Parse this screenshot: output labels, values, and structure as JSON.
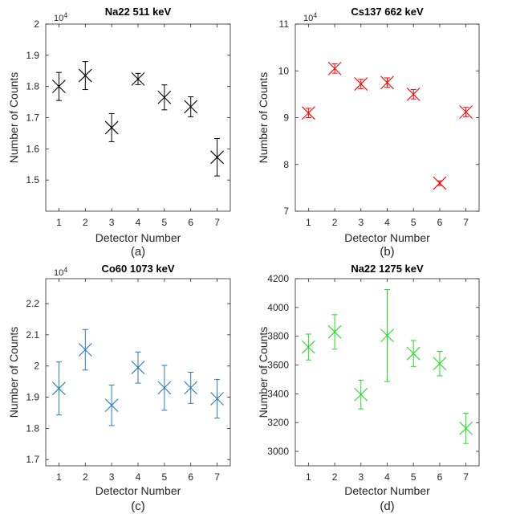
{
  "chart_data": [
    {
      "type": "scatter",
      "title": "Na22 511 keV",
      "xlabel": "Detector Number",
      "ylabel": "Number of Counts",
      "panel_label": "(a)",
      "y_exponent_label": "10^4",
      "xlim": [
        0.5,
        7.5
      ],
      "ylim": [
        1.4,
        2.0
      ],
      "x_ticks": [
        1,
        2,
        3,
        4,
        5,
        6,
        7
      ],
      "y_ticks": [
        1.5,
        1.6,
        1.7,
        1.8,
        1.9,
        2.0
      ],
      "y_tick_labels": [
        "1.5",
        "1.6",
        "1.7",
        "1.8",
        "1.9",
        "2"
      ],
      "color": "#000000",
      "marker": "x",
      "error_bars": true,
      "x": [
        1,
        2,
        3,
        4,
        5,
        6,
        7
      ],
      "y": [
        1.8,
        1.835,
        1.668,
        1.824,
        1.765,
        1.735,
        1.573
      ],
      "err": [
        0.045,
        0.045,
        0.045,
        0.018,
        0.04,
        0.032,
        0.06
      ]
    },
    {
      "type": "scatter",
      "title": "Cs137 662 keV",
      "xlabel": "Detector Number",
      "ylabel": "Number of Counts",
      "panel_label": "(b)",
      "y_exponent_label": "10^4",
      "xlim": [
        0.5,
        7.5
      ],
      "ylim": [
        7,
        11
      ],
      "x_ticks": [
        1,
        2,
        3,
        4,
        5,
        6,
        7
      ],
      "y_ticks": [
        7,
        8,
        9,
        10,
        11
      ],
      "y_tick_labels": [
        "7",
        "8",
        "9",
        "10",
        "11"
      ],
      "color": "#ff0000",
      "marker": "x",
      "error_bars": true,
      "x": [
        1,
        2,
        3,
        4,
        5,
        6,
        7
      ],
      "y": [
        9.1,
        10.05,
        9.72,
        9.75,
        9.5,
        7.6,
        9.12
      ],
      "err": [
        0.1,
        0.1,
        0.1,
        0.1,
        0.1,
        0.05,
        0.1
      ]
    },
    {
      "type": "scatter",
      "title": "Co60 1073 keV",
      "xlabel": "Detector Number",
      "ylabel": "Number of Counts",
      "panel_label": "(c)",
      "y_exponent_label": "10^4",
      "xlim": [
        0.5,
        7.5
      ],
      "ylim": [
        1.68,
        2.28
      ],
      "x_ticks": [
        1,
        2,
        3,
        4,
        5,
        6,
        7
      ],
      "y_ticks": [
        1.7,
        1.8,
        1.9,
        2.0,
        2.1,
        2.2
      ],
      "y_tick_labels": [
        "1.7",
        "1.8",
        "1.9",
        "2",
        "2.1",
        "2.2"
      ],
      "color": "#2a7ab8",
      "marker": "x",
      "error_bars": true,
      "x": [
        1,
        2,
        3,
        4,
        5,
        6,
        7
      ],
      "y": [
        1.928,
        2.052,
        1.874,
        1.995,
        1.93,
        1.93,
        1.895
      ],
      "err": [
        0.085,
        0.065,
        0.065,
        0.05,
        0.072,
        0.05,
        0.062
      ]
    },
    {
      "type": "scatter",
      "title": "Na22 1275 keV",
      "xlabel": "Detector Number",
      "ylabel": "Number of Counts",
      "panel_label": "(d)",
      "y_exponent_label": "",
      "xlim": [
        0.5,
        7.5
      ],
      "ylim": [
        2900,
        4200
      ],
      "x_ticks": [
        1,
        2,
        3,
        4,
        5,
        6,
        7
      ],
      "y_ticks": [
        3000,
        3200,
        3400,
        3600,
        3800,
        4000,
        4200
      ],
      "y_tick_labels": [
        "3000",
        "3200",
        "3400",
        "3600",
        "3800",
        "4000",
        "4200"
      ],
      "color": "#22dd22",
      "marker": "x",
      "error_bars": true,
      "x": [
        1,
        2,
        3,
        4,
        5,
        6,
        7
      ],
      "y": [
        3725,
        3830,
        3395,
        3805,
        3680,
        3610,
        3160
      ],
      "err": [
        90,
        120,
        100,
        320,
        90,
        85,
        105
      ]
    }
  ]
}
